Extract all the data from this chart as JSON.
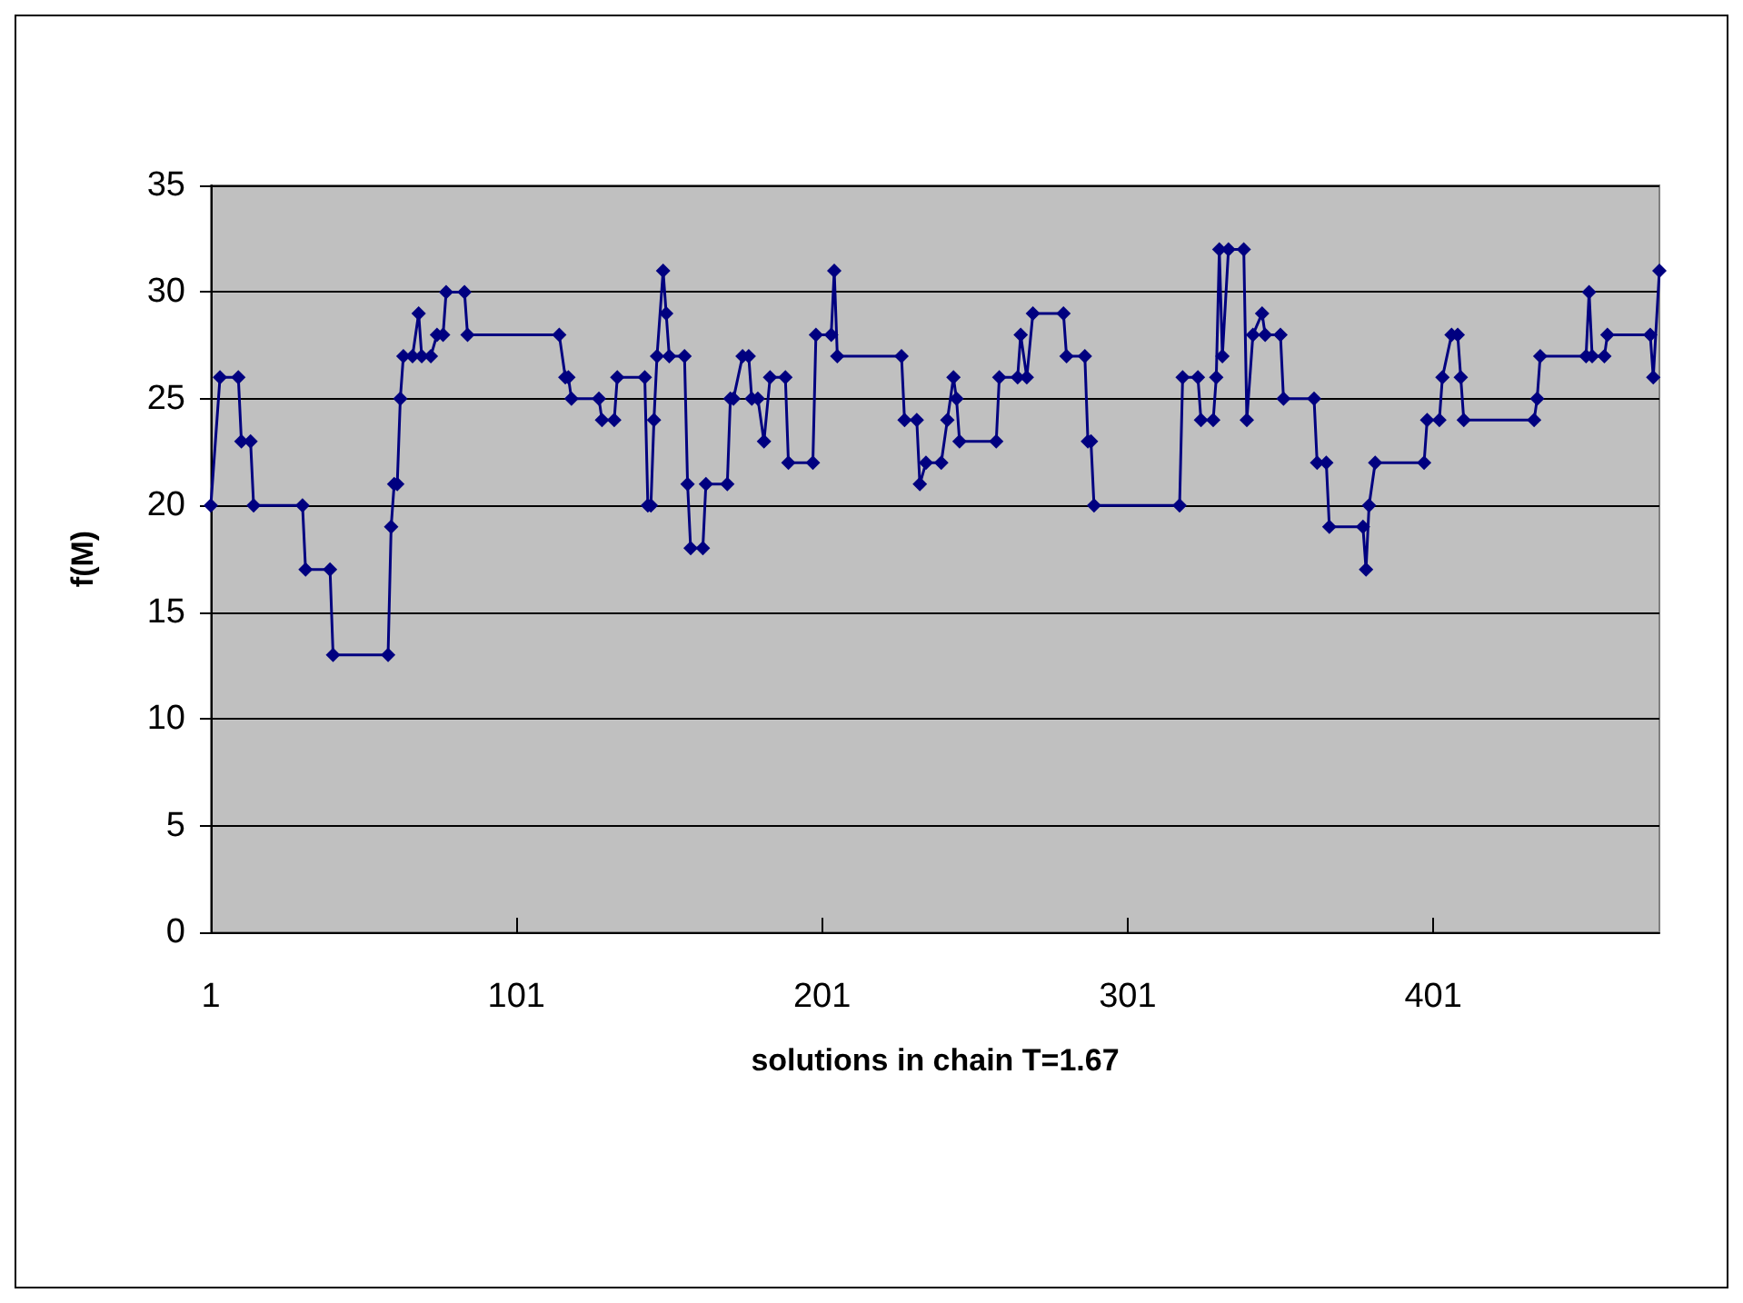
{
  "chart_data": {
    "type": "line",
    "xlabel": "solutions in chain T=1.67",
    "ylabel": "f(M)",
    "x": [
      1,
      4,
      10,
      11,
      14,
      15,
      31,
      32,
      40,
      41,
      59,
      60,
      61,
      62,
      63,
      64,
      67,
      69,
      70,
      73,
      75,
      77,
      78,
      84,
      85,
      115,
      117,
      118,
      119,
      128,
      129,
      133,
      134,
      143,
      144,
      145,
      146,
      147,
      149,
      150,
      151,
      156,
      157,
      158,
      162,
      163,
      170,
      171,
      172,
      175,
      177,
      178,
      180,
      182,
      184,
      189,
      190,
      198,
      199,
      204,
      205,
      206,
      227,
      228,
      232,
      233,
      235,
      240,
      242,
      244,
      245,
      246,
      258,
      259,
      265,
      266,
      268,
      270,
      280,
      281,
      287,
      288,
      289,
      290,
      318,
      319,
      324,
      325,
      329,
      330,
      331,
      332,
      334,
      339,
      340,
      342,
      345,
      346,
      351,
      352,
      362,
      363,
      366,
      367,
      378,
      379,
      380,
      382,
      398,
      399,
      403,
      404,
      407,
      409,
      410,
      411,
      434,
      435,
      436,
      451,
      452,
      453,
      457,
      458,
      472,
      473,
      475
    ],
    "series": [
      {
        "color": "#000080",
        "values": [
          20,
          26,
          26,
          23,
          23,
          20,
          20,
          17,
          17,
          13,
          13,
          19,
          21,
          21,
          25,
          27,
          27,
          29,
          27,
          27,
          28,
          28,
          30,
          30,
          28,
          28,
          26,
          26,
          25,
          25,
          24,
          24,
          26,
          26,
          20,
          20,
          24,
          27,
          31,
          29,
          27,
          27,
          21,
          18,
          18,
          21,
          21,
          25,
          25,
          27,
          27,
          25,
          25,
          23,
          26,
          26,
          22,
          22,
          28,
          28,
          31,
          27,
          27,
          24,
          24,
          21,
          22,
          22,
          24,
          26,
          25,
          23,
          23,
          26,
          26,
          28,
          26,
          29,
          29,
          27,
          27,
          23,
          23,
          20,
          20,
          26,
          26,
          24,
          24,
          26,
          32,
          27,
          32,
          32,
          24,
          28,
          29,
          28,
          28,
          25,
          25,
          22,
          22,
          19,
          19,
          17,
          20,
          22,
          22,
          24,
          24,
          26,
          28,
          28,
          26,
          24,
          24,
          25,
          27,
          27,
          30,
          27,
          27,
          28,
          28,
          26,
          31
        ]
      }
    ],
    "xlim": [
      1,
      475
    ],
    "xticks": [
      1,
      101,
      201,
      301,
      401
    ],
    "ylim": [
      0,
      35
    ],
    "yticks": [
      0,
      5,
      10,
      15,
      20,
      25,
      30,
      35
    ],
    "grid": "y",
    "marker": "diamond",
    "line_style": "solid"
  }
}
